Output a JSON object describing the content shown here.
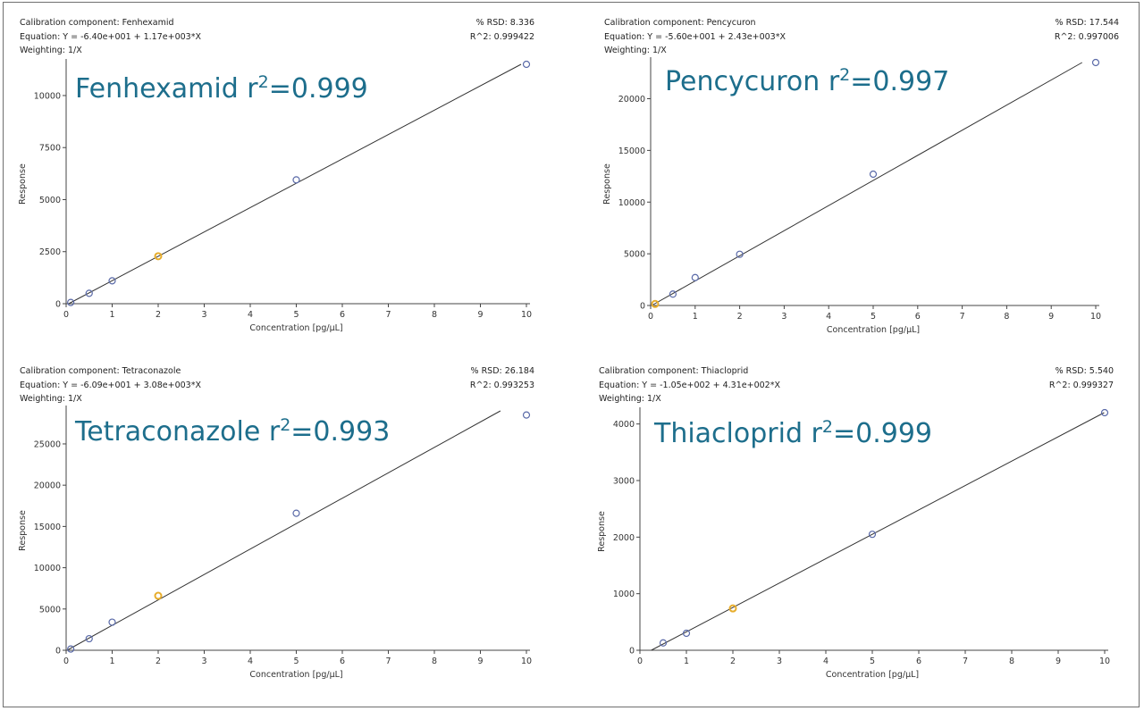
{
  "chart_data": [
    {
      "type": "scatter",
      "component_label": "Calibration component: Fenhexamid",
      "equation_label": "Equation: Y = -6.40e+001 + 1.17e+003*X",
      "weighting_label": "Weighting: 1/X",
      "rsd_label": "% RSD: 8.336",
      "r2_text": "R^2: 0.999422",
      "big_name": "Fenhexamid r",
      "big_sup": "2",
      "big_value": "=0.999",
      "xlabel": "Concentration [pg/µL]",
      "ylabel": "Response",
      "xlim": [
        0,
        10
      ],
      "ylim": [
        0,
        11500
      ],
      "xticks": [
        0,
        1,
        2,
        3,
        4,
        5,
        6,
        7,
        8,
        9,
        10
      ],
      "yticks": [
        0,
        2500,
        5000,
        7500,
        10000
      ],
      "fit": {
        "intercept": -64,
        "slope": 1170
      },
      "points": [
        {
          "x": 0.1,
          "y": 60,
          "color": "#5a6aa8"
        },
        {
          "x": 0.5,
          "y": 500,
          "color": "#5a6aa8"
        },
        {
          "x": 1,
          "y": 1100,
          "color": "#5a6aa8"
        },
        {
          "x": 2,
          "y": 2280,
          "color": "#e7ad2c"
        },
        {
          "x": 5,
          "y": 5950,
          "color": "#5a6aa8"
        },
        {
          "x": 10,
          "y": 11500,
          "color": "#5a6aa8"
        }
      ]
    },
    {
      "type": "scatter",
      "component_label": "Calibration component: Pencycuron",
      "equation_label": "Equation: Y = -5.60e+001 + 2.43e+003*X",
      "weighting_label": "Weighting: 1/X",
      "rsd_label": "% RSD: 17.544",
      "r2_text": "R^2: 0.997006",
      "big_name": "Pencycuron r",
      "big_sup": "2",
      "big_value": "=0.997",
      "xlabel": "Concentration [pg/µL]",
      "ylabel": "Response",
      "xlim": [
        0,
        10
      ],
      "ylim": [
        0,
        23500
      ],
      "xticks": [
        0,
        1,
        2,
        3,
        4,
        5,
        6,
        7,
        8,
        9,
        10
      ],
      "yticks": [
        0,
        5000,
        10000,
        15000,
        20000
      ],
      "fit": {
        "intercept": -56,
        "slope": 2430
      },
      "points": [
        {
          "x": 0.1,
          "y": 150,
          "color": "#e7ad2c"
        },
        {
          "x": 0.5,
          "y": 1100,
          "color": "#5a6aa8"
        },
        {
          "x": 1,
          "y": 2700,
          "color": "#5a6aa8"
        },
        {
          "x": 2,
          "y": 4950,
          "color": "#5a6aa8"
        },
        {
          "x": 5,
          "y": 12700,
          "color": "#5a6aa8"
        },
        {
          "x": 10,
          "y": 23500,
          "color": "#5a6aa8"
        }
      ]
    },
    {
      "type": "scatter",
      "component_label": "Calibration component: Tetraconazole",
      "equation_label": "Equation: Y = -6.09e+001 + 3.08e+003*X",
      "weighting_label": "Weighting: 1/X",
      "rsd_label": "% RSD: 26.184",
      "r2_text": "R^2: 0.993253",
      "big_name": "Tetraconazole r",
      "big_sup": "2",
      "big_value": "=0.993",
      "xlabel": "Concentration [pg/µL]",
      "ylabel": "Response",
      "xlim": [
        0,
        10
      ],
      "ylim": [
        0,
        29000
      ],
      "xticks": [
        0,
        1,
        2,
        3,
        4,
        5,
        6,
        7,
        8,
        9,
        10
      ],
      "yticks": [
        0,
        5000,
        10000,
        15000,
        20000,
        25000
      ],
      "fit": {
        "intercept": -60.9,
        "slope": 3080
      },
      "points": [
        {
          "x": 0.1,
          "y": 150,
          "color": "#5a6aa8"
        },
        {
          "x": 0.5,
          "y": 1400,
          "color": "#5a6aa8"
        },
        {
          "x": 1,
          "y": 3400,
          "color": "#5a6aa8"
        },
        {
          "x": 2,
          "y": 6600,
          "color": "#e7ad2c"
        },
        {
          "x": 5,
          "y": 16600,
          "color": "#5a6aa8"
        },
        {
          "x": 10,
          "y": 28500,
          "color": "#5a6aa8"
        }
      ]
    },
    {
      "type": "scatter",
      "component_label": "Calibration component: Thiacloprid",
      "equation_label": "Equation: Y = -1.05e+002 + 4.31e+002*X",
      "weighting_label": "Weighting: 1/X",
      "rsd_label": "% RSD: 5.540",
      "r2_text": "R^2: 0.999327",
      "big_name": "Thiacloprid r",
      "big_sup": "2",
      "big_value": "=0.999",
      "xlabel": "Concentration [pg/µL]",
      "ylabel": "Response",
      "xlim": [
        0,
        10
      ],
      "ylim": [
        0,
        4200
      ],
      "xticks": [
        0,
        1,
        2,
        3,
        4,
        5,
        6,
        7,
        8,
        9,
        10
      ],
      "yticks": [
        0,
        1000,
        2000,
        3000,
        4000
      ],
      "fit": {
        "intercept": -105,
        "slope": 431
      },
      "points": [
        {
          "x": 0.5,
          "y": 130,
          "color": "#5a6aa8"
        },
        {
          "x": 1,
          "y": 300,
          "color": "#5a6aa8"
        },
        {
          "x": 2,
          "y": 740,
          "color": "#e7ad2c"
        },
        {
          "x": 5,
          "y": 2050,
          "color": "#5a6aa8"
        },
        {
          "x": 10,
          "y": 4200,
          "color": "#5a6aa8"
        }
      ]
    }
  ]
}
